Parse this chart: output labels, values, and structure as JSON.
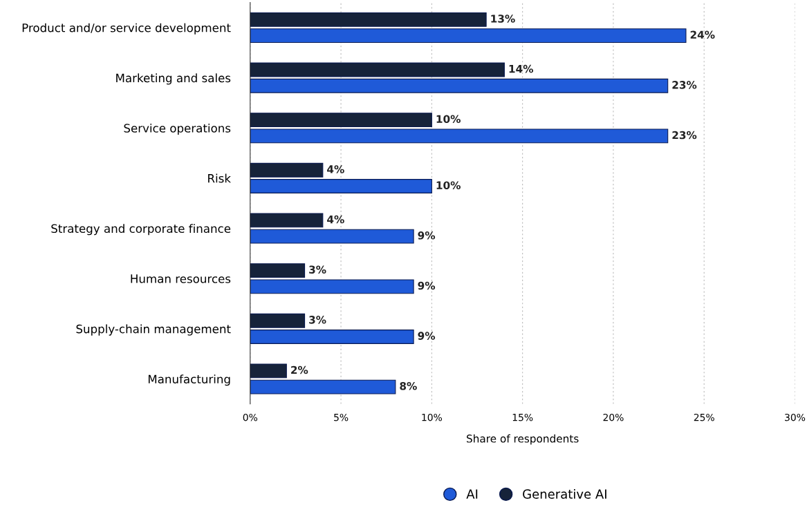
{
  "chart_data": {
    "type": "bar",
    "orientation": "horizontal",
    "xlabel": "Share of respondents",
    "categories": [
      "Product and/or service development",
      "Marketing and sales",
      "Service operations",
      "Risk",
      "Strategy and corporate finance",
      "Human resources",
      "Supply-chain management",
      "Manufacturing"
    ],
    "series": [
      {
        "name": "AI",
        "color": "#1f5ad8",
        "values": [
          24,
          23,
          23,
          10,
          9,
          9,
          9,
          8
        ],
        "value_labels": [
          "24%",
          "23%",
          "23%",
          "10%",
          "9%",
          "9%",
          "9%",
          "8%"
        ]
      },
      {
        "name": "Generative AI",
        "color": "#16233a",
        "values": [
          13,
          14,
          10,
          4,
          4,
          3,
          3,
          2
        ],
        "value_labels": [
          "13%",
          "14%",
          "10%",
          "4%",
          "4%",
          "3%",
          "3%",
          "2%"
        ]
      }
    ],
    "xlim": [
      0,
      30
    ],
    "xticks": [
      {
        "value": 0,
        "label": "0%"
      },
      {
        "value": 5,
        "label": "5%"
      },
      {
        "value": 10,
        "label": "10%"
      },
      {
        "value": 15,
        "label": "15%"
      },
      {
        "value": 20,
        "label": "20%"
      },
      {
        "value": 25,
        "label": "25%"
      },
      {
        "value": 30,
        "label": "30%"
      }
    ],
    "grid": "x",
    "legend": "bottom"
  }
}
